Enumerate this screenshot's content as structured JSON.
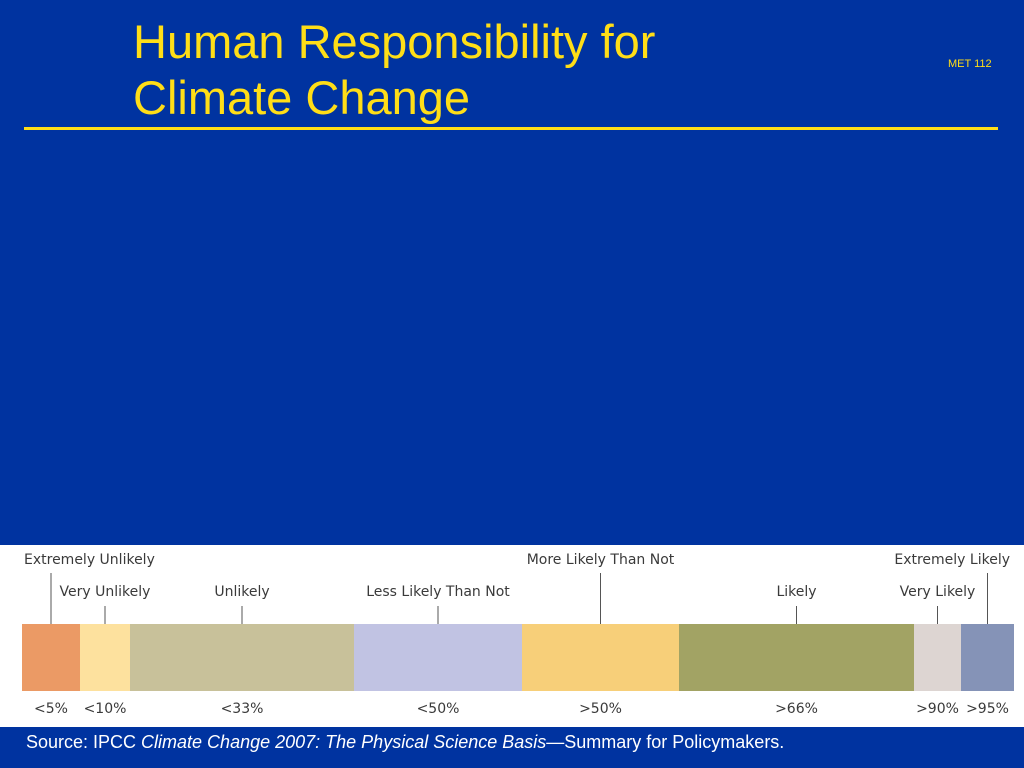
{
  "title": {
    "line1": "Human Responsibility for",
    "line2": "Climate Change"
  },
  "course_code": "MET 112",
  "colors": {
    "background": "#0033a0",
    "title": "#ffde17"
  },
  "scale": {
    "upper_labels": [
      {
        "text": "Extremely Unlikely",
        "row": 1,
        "marker_value": 2.5
      },
      {
        "text": "Very Unlikely",
        "row": 2,
        "marker_value": 7.5
      },
      {
        "text": "Unlikely",
        "row": 2,
        "marker_value": 21.5
      },
      {
        "text": "Less Likely Than Not",
        "row": 2,
        "marker_value": 41.5
      },
      {
        "text": "More Likely Than Not",
        "row": 1,
        "marker_value": 58
      },
      {
        "text": "Likely",
        "row": 2,
        "marker_value": 78
      },
      {
        "text": "Very Likely",
        "row": 2,
        "marker_value": 92.5
      },
      {
        "text": "Extremely Likely",
        "row": 1,
        "marker_value": 97.5
      }
    ],
    "segments": [
      {
        "label": "<5%",
        "start": 0,
        "end": 5,
        "color": "#eb9a65"
      },
      {
        "label": "<10%",
        "start": 5,
        "end": 10,
        "color": "#fde19e"
      },
      {
        "label": "<33%",
        "start": 10,
        "end": 33,
        "color": "#c8c19a"
      },
      {
        "label": "<50%",
        "start": 33,
        "end": 50,
        "color": "#c1c3e3"
      },
      {
        "label": ">50%",
        "start": 50,
        "end": 66,
        "color": "#f7cf79"
      },
      {
        "label": ">66%",
        "start": 66,
        "end": 90,
        "color": "#a2a364"
      },
      {
        "label": ">90%",
        "start": 90,
        "end": 95,
        "color": "#ddd5d2"
      },
      {
        "label": ">95%",
        "start": 95,
        "end": 100,
        "color": "#8593b7"
      }
    ]
  },
  "source": {
    "prefix": "Source: IPCC ",
    "title_italic": "Climate Change 2007: The Physical Science Basis",
    "suffix": "—Summary for Policymakers."
  }
}
